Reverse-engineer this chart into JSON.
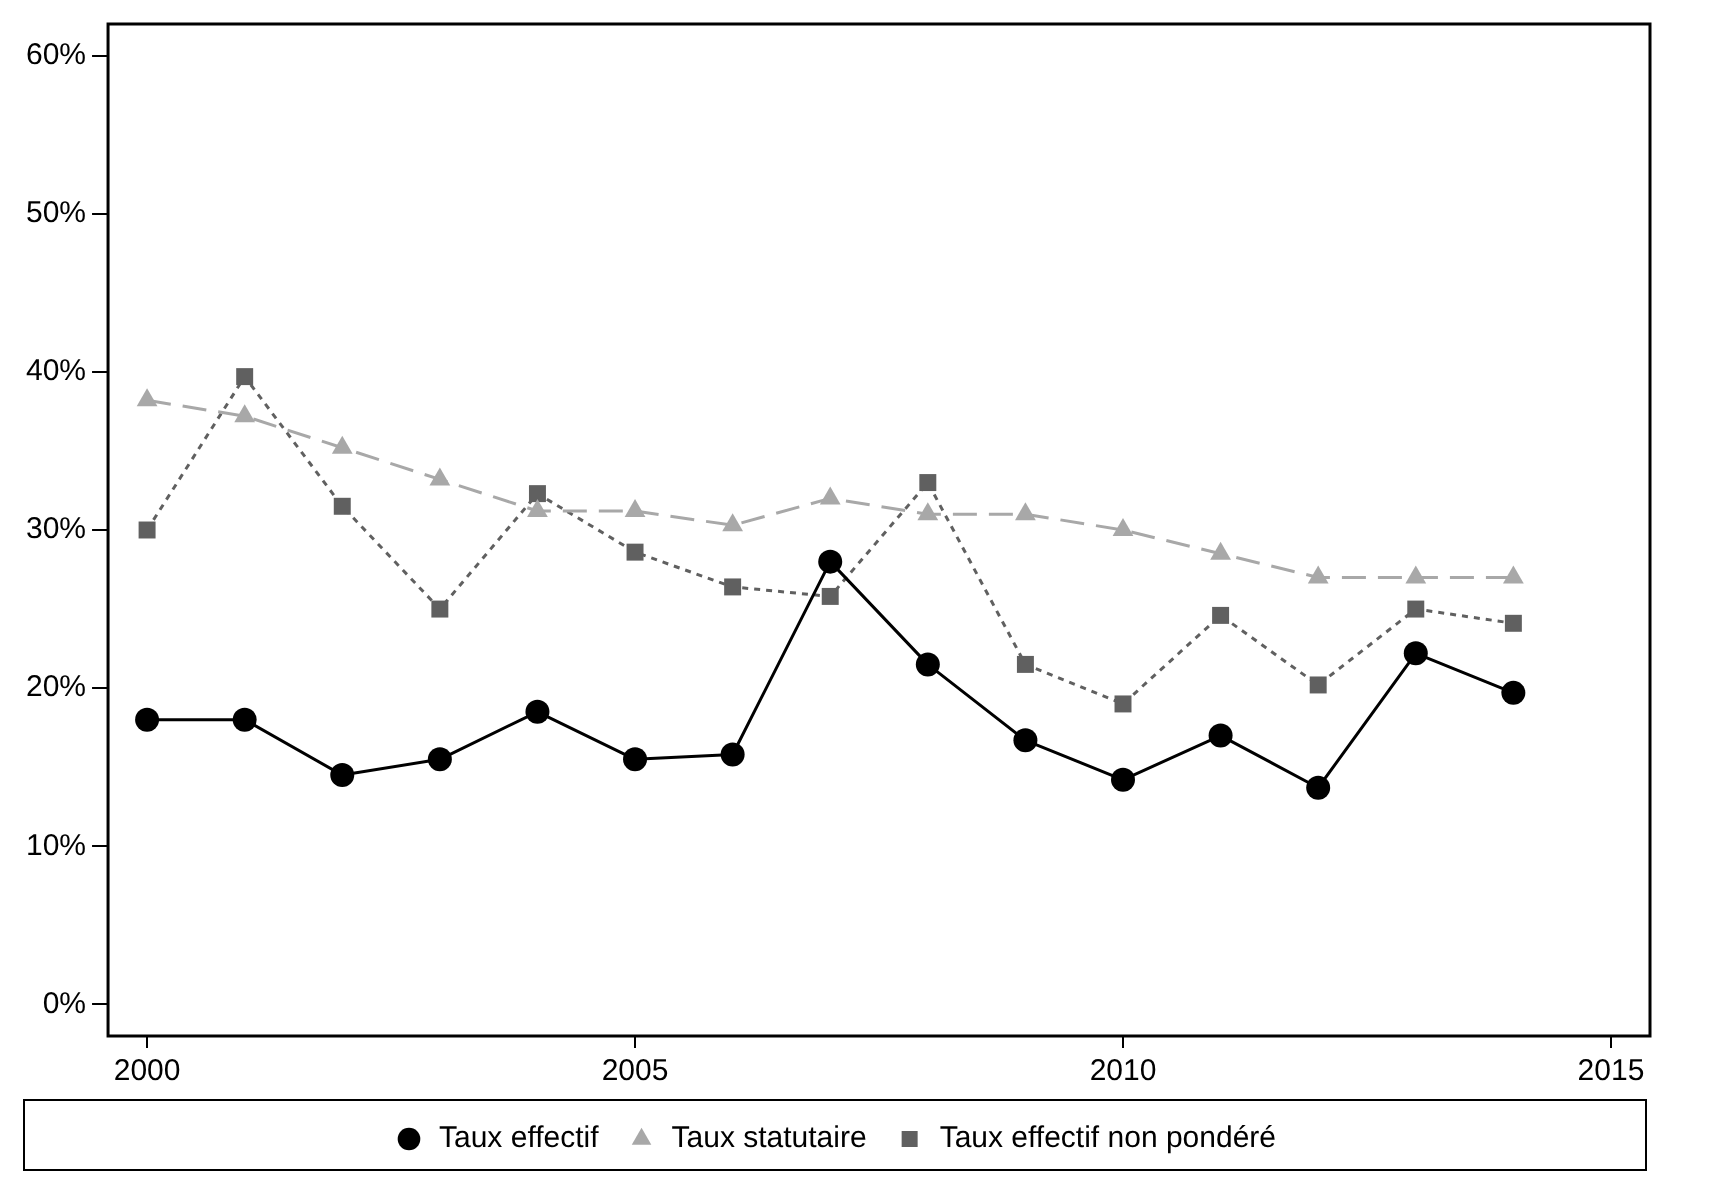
{
  "chart_data": {
    "type": "line",
    "x": [
      2000,
      2001,
      2002,
      2003,
      2004,
      2005,
      2006,
      2007,
      2008,
      2009,
      2010,
      2011,
      2012,
      2013,
      2014
    ],
    "series": [
      {
        "name": "Taux effectif",
        "color": "#000000",
        "marker": "circle",
        "line_style": "solid",
        "values": [
          18,
          18,
          14.5,
          15.5,
          18.5,
          15.5,
          15.8,
          28,
          21.5,
          16.7,
          14.2,
          17,
          13.7,
          22.2,
          19.7
        ]
      },
      {
        "name": "Taux statutaire",
        "color": "#a8a8a8",
        "marker": "triangle",
        "line_style": "dashed",
        "values": [
          38.2,
          37.2,
          35.2,
          33.2,
          31.2,
          31.2,
          30.3,
          32,
          31,
          31,
          30,
          28.5,
          27,
          27,
          27
        ]
      },
      {
        "name": "Taux effectif non pondéré",
        "color": "#606060",
        "marker": "square",
        "line_style": "dotted",
        "values": [
          30,
          39.7,
          31.5,
          25,
          32.3,
          28.6,
          26.4,
          25.8,
          33,
          21.5,
          19,
          24.6,
          20.2,
          25,
          24.1
        ]
      }
    ],
    "xlim": [
      1999.6,
      2015.4
    ],
    "xticks": [
      2000,
      2005,
      2010,
      2015
    ],
    "ylim": [
      -2,
      62
    ],
    "yticks": [
      {
        "value": 0,
        "label": "0%"
      },
      {
        "value": 10,
        "label": "10%"
      },
      {
        "value": 20,
        "label": "20%"
      },
      {
        "value": 30,
        "label": "30%"
      },
      {
        "value": 40,
        "label": "40%"
      },
      {
        "value": 50,
        "label": "50%"
      },
      {
        "value": 60,
        "label": "60%"
      }
    ],
    "grid": false,
    "legend": "bottom"
  }
}
